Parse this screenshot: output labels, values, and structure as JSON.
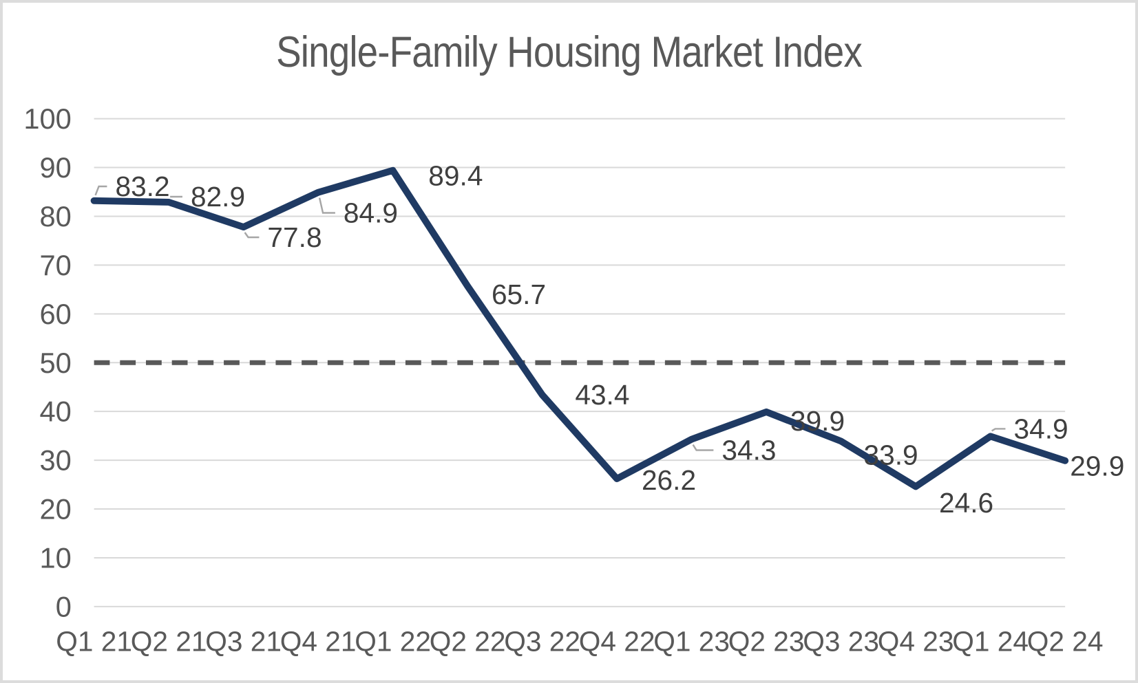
{
  "chart_data": {
    "type": "line",
    "title": "Single-Family Housing Market Index",
    "categories": [
      "Q1 21",
      "Q2 21",
      "Q3 21",
      "Q4 21",
      "Q1 22",
      "Q2 22",
      "Q3 22",
      "Q4 22",
      "Q1 23",
      "Q2 23",
      "Q3 23",
      "Q4 23",
      "Q1 24",
      "Q2 24"
    ],
    "series": [
      {
        "name": "Single-Family Housing Market Index",
        "values": [
          83.2,
          82.9,
          77.8,
          84.9,
          89.4,
          65.7,
          43.4,
          26.2,
          34.3,
          39.9,
          33.9,
          24.6,
          34.9,
          29.9
        ]
      }
    ],
    "xlabel": "",
    "ylabel": "",
    "ylim": [
      0,
      100
    ],
    "ytick_step": 10,
    "grid": true,
    "legend": "none",
    "reference_line": {
      "value": 50,
      "style": "dashed"
    },
    "data_labels": {
      "show": true,
      "decimals": 1,
      "offsets": [
        [
          71,
          -21,
          1
        ],
        [
          72,
          -8,
          1
        ],
        [
          75,
          15,
          1
        ],
        [
          77,
          30,
          1
        ],
        [
          92,
          8,
          0
        ],
        [
          75,
          12,
          0
        ],
        [
          88,
          0,
          0
        ],
        [
          76,
          2,
          0
        ],
        [
          84,
          16,
          1
        ],
        [
          75,
          13,
          0
        ],
        [
          73,
          20,
          0
        ],
        [
          74,
          24,
          0
        ],
        [
          74,
          -11,
          1
        ],
        [
          47,
          8,
          0
        ]
      ]
    },
    "colors": {
      "series": "#1f3a63",
      "reference": "#595959",
      "grid": "#d9d9d9",
      "axis_text": "#595959",
      "data_label_text": "#3f3f3f",
      "leader": "#a6a6a6",
      "title_text": "#595959",
      "frame_border": "#dcdcdc"
    }
  }
}
